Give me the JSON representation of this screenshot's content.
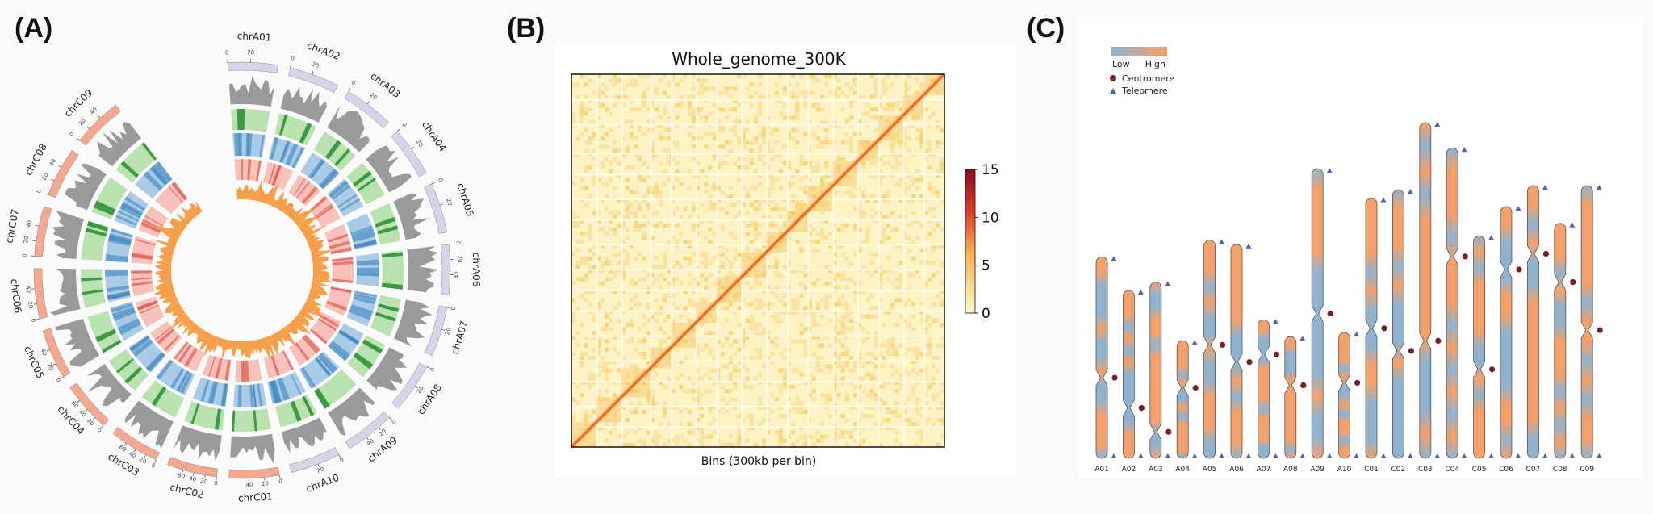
{
  "panels": {
    "a": {
      "label": "(A)"
    },
    "b": {
      "label": "(B)"
    },
    "c": {
      "label": "(C)"
    }
  },
  "circos": {
    "chromosomes": [
      {
        "name": "chrA01",
        "ticks": [
          "0",
          "20"
        ],
        "group": "A"
      },
      {
        "name": "chrA02",
        "ticks": [
          "0",
          "20"
        ],
        "group": "A"
      },
      {
        "name": "chrA03",
        "ticks": [
          "0",
          "20"
        ],
        "group": "A"
      },
      {
        "name": "chrA04",
        "ticks": [
          "0",
          "20"
        ],
        "group": "A"
      },
      {
        "name": "chrA05",
        "ticks": [
          "0",
          "20"
        ],
        "group": "A"
      },
      {
        "name": "chrA06",
        "ticks": [
          "0",
          "20",
          "40"
        ],
        "group": "A"
      },
      {
        "name": "chrA07",
        "ticks": [
          "0",
          "20"
        ],
        "group": "A"
      },
      {
        "name": "chrA08",
        "ticks": [
          "0",
          "20"
        ],
        "group": "A"
      },
      {
        "name": "chrA09",
        "ticks": [
          "0",
          "20",
          "40"
        ],
        "group": "A"
      },
      {
        "name": "chrA10",
        "ticks": [
          "0",
          "20"
        ],
        "group": "A"
      },
      {
        "name": "chrC01",
        "ticks": [
          "0",
          "20",
          "40"
        ],
        "group": "C"
      },
      {
        "name": "chrC02",
        "ticks": [
          "0",
          "20",
          "40",
          "60"
        ],
        "group": "C"
      },
      {
        "name": "chrC03",
        "ticks": [
          "0",
          "20",
          "40",
          "60"
        ],
        "group": "C"
      },
      {
        "name": "chrC04",
        "ticks": [
          "0",
          "20",
          "40",
          "60"
        ],
        "group": "C"
      },
      {
        "name": "chrC05",
        "ticks": [
          "0",
          "20",
          "40"
        ],
        "group": "C"
      },
      {
        "name": "chrC06",
        "ticks": [
          "0",
          "20",
          "40"
        ],
        "group": "C"
      },
      {
        "name": "chrC07",
        "ticks": [
          "0",
          "20",
          "40"
        ],
        "group": "C"
      },
      {
        "name": "chrC08",
        "ticks": [
          "0",
          "20",
          "40"
        ],
        "group": "C"
      },
      {
        "name": "chrC09",
        "ticks": [
          "0",
          "20",
          "40"
        ],
        "group": "C"
      }
    ],
    "colors": {
      "A": "#d9d3ea",
      "C": "#f4a88f",
      "histogram": "#9a9a9a",
      "green": "#b9e2b0",
      "green_dark": "#3c9a43",
      "blue": "#a9cbe6",
      "blue_dark": "#3d86c0",
      "red": "#f8c2bb",
      "red_dark": "#e0584f",
      "core": "#f7a04b"
    }
  },
  "heatmap": {
    "title": "Whole_genome_300K",
    "xlabel": "Bins (300kb per bin)",
    "colorbar_ticks": [
      "0",
      "5",
      "10",
      "15"
    ],
    "colorbar_range": [
      0,
      15
    ],
    "colors": {
      "low": "#fff9c8",
      "mid": "#f8b554",
      "high": "#8b0a20"
    }
  },
  "karyotype": {
    "legend": {
      "low": "Low",
      "high": "High",
      "centromere": "Centromere",
      "telomere": "Teleomere"
    },
    "colors": {
      "low": "#8fb3cf",
      "high": "#f4a06a",
      "centromere": "#7e1f1f",
      "telomere": "#4f62b8"
    },
    "chromosomes": [
      {
        "name": "A01",
        "length": 0.48,
        "centromere": 0.6,
        "telomeres": [
          "top",
          "bottom"
        ]
      },
      {
        "name": "A02",
        "length": 0.4,
        "centromere": 0.7,
        "telomeres": [
          "top",
          "bottom"
        ]
      },
      {
        "name": "A03",
        "length": 0.42,
        "centromere": 0.85,
        "telomeres": [
          "top",
          "bottom"
        ]
      },
      {
        "name": "A04",
        "length": 0.28,
        "centromere": 0.4,
        "telomeres": [
          "top",
          "bottom"
        ]
      },
      {
        "name": "A05",
        "length": 0.52,
        "centromere": 0.48,
        "telomeres": [
          "top",
          "bottom"
        ]
      },
      {
        "name": "A06",
        "length": 0.51,
        "centromere": 0.55,
        "telomeres": [
          "top",
          "bottom"
        ]
      },
      {
        "name": "A07",
        "length": 0.33,
        "centromere": 0.25,
        "telomeres": [
          "top",
          "bottom"
        ]
      },
      {
        "name": "A08",
        "length": 0.29,
        "centromere": 0.4,
        "telomeres": [
          "top",
          "bottom"
        ]
      },
      {
        "name": "A09",
        "length": 0.69,
        "centromere": 0.5,
        "telomeres": [
          "top",
          "bottom"
        ]
      },
      {
        "name": "A10",
        "length": 0.3,
        "centromere": 0.4,
        "telomeres": [
          "top",
          "bottom"
        ]
      },
      {
        "name": "C01",
        "length": 0.62,
        "centromere": 0.5,
        "telomeres": [
          "top",
          "bottom"
        ]
      },
      {
        "name": "C02",
        "length": 0.64,
        "centromere": 0.6,
        "telomeres": [
          "top",
          "bottom"
        ]
      },
      {
        "name": "C03",
        "length": 0.8,
        "centromere": 0.65,
        "telomeres": [
          "top",
          "bottom"
        ]
      },
      {
        "name": "C04",
        "length": 0.74,
        "centromere": 0.35,
        "telomeres": [
          "top",
          "bottom"
        ]
      },
      {
        "name": "C05",
        "length": 0.53,
        "centromere": 0.6,
        "telomeres": [
          "top",
          "bottom"
        ]
      },
      {
        "name": "C06",
        "length": 0.6,
        "centromere": 0.25,
        "telomeres": [
          "top",
          "bottom"
        ]
      },
      {
        "name": "C07",
        "length": 0.65,
        "centromere": 0.25,
        "telomeres": [
          "top",
          "bottom"
        ]
      },
      {
        "name": "C08",
        "length": 0.56,
        "centromere": 0.25,
        "telomeres": [
          "top",
          "bottom"
        ]
      },
      {
        "name": "C09",
        "length": 0.65,
        "centromere": 0.53,
        "telomeres": [
          "top",
          "bottom"
        ]
      }
    ]
  }
}
